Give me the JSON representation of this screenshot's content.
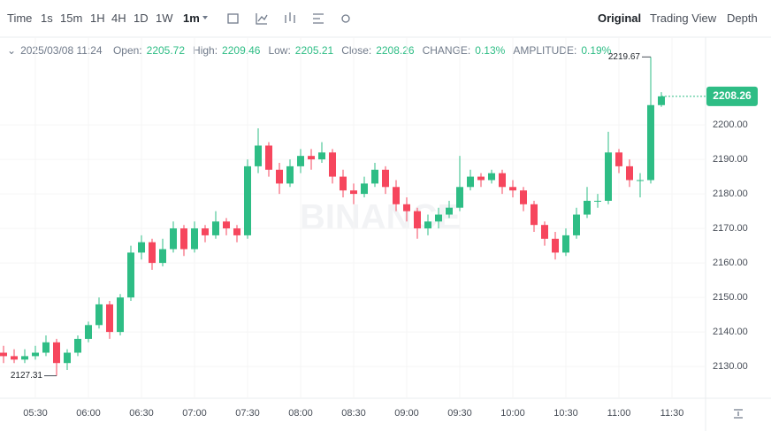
{
  "toolbar": {
    "intervals": [
      "Time",
      "1s",
      "15m",
      "1H",
      "4H",
      "1D",
      "1W",
      "1m"
    ],
    "views": [
      "Original",
      "Trading View",
      "Depth"
    ]
  },
  "legend": {
    "date": "2025/03/08 11:24",
    "items": [
      {
        "label": "Open:",
        "value": "2205.72"
      },
      {
        "label": "High:",
        "value": "2209.46"
      },
      {
        "label": "Low:",
        "value": "2205.21"
      },
      {
        "label": "Close:",
        "value": "2208.26"
      },
      {
        "label": "CHANGE:",
        "value": "0.13%"
      },
      {
        "label": "AMPLITUDE:",
        "value": "0.19%"
      }
    ]
  },
  "chart_data": {
    "type": "candlestick",
    "watermark": "BINANCE",
    "up_color": "#2ebd85",
    "down_color": "#f6465d",
    "categories": [
      "05:12",
      "05:18",
      "05:24",
      "05:30",
      "05:36",
      "05:42",
      "05:48",
      "05:54",
      "06:00",
      "06:06",
      "06:12",
      "06:18",
      "06:24",
      "06:30",
      "06:36",
      "06:42",
      "06:48",
      "06:54",
      "07:00",
      "07:06",
      "07:12",
      "07:18",
      "07:24",
      "07:30",
      "07:36",
      "07:42",
      "07:48",
      "07:54",
      "08:00",
      "08:06",
      "08:12",
      "08:18",
      "08:24",
      "08:30",
      "08:36",
      "08:42",
      "08:48",
      "08:54",
      "09:00",
      "09:06",
      "09:12",
      "09:18",
      "09:24",
      "09:30",
      "09:36",
      "09:42",
      "09:48",
      "09:54",
      "10:00",
      "10:06",
      "10:12",
      "10:18",
      "10:24",
      "10:30",
      "10:36",
      "10:42",
      "10:48",
      "10:54",
      "11:00",
      "11:06",
      "11:12",
      "11:18",
      "11:24"
    ],
    "open": [
      2134,
      2133,
      2132,
      2133,
      2134,
      2137,
      2131,
      2134,
      2138,
      2142,
      2148,
      2140,
      2150,
      2163,
      2166,
      2160,
      2164,
      2170,
      2164,
      2170,
      2168,
      2172,
      2170,
      2168,
      2188,
      2194,
      2187,
      2183,
      2188,
      2191,
      2190,
      2192,
      2185,
      2181,
      2180,
      2183,
      2187,
      2182,
      2177,
      2175,
      2170,
      2172,
      2174,
      2176,
      2182,
      2185,
      2184,
      2186,
      2182,
      2181,
      2177,
      2171,
      2167,
      2163,
      2168,
      2174,
      2178,
      2178,
      2192,
      2188,
      2184,
      2184,
      2205.72
    ],
    "high": [
      2136,
      2135,
      2135,
      2136,
      2139,
      2138,
      2135,
      2139,
      2143,
      2150,
      2149,
      2151,
      2165,
      2168,
      2167,
      2167,
      2172,
      2171,
      2172,
      2171,
      2175,
      2173,
      2171,
      2190,
      2199,
      2195,
      2189,
      2190,
      2193,
      2193,
      2195,
      2193,
      2187,
      2183,
      2185,
      2189,
      2188,
      2184,
      2179,
      2176,
      2174,
      2176,
      2178,
      2191,
      2187,
      2186,
      2187,
      2187,
      2184,
      2182,
      2178,
      2172,
      2169,
      2170,
      2176,
      2182,
      2180,
      2198,
      2193,
      2190,
      2186,
      2219.67,
      2209.46
    ],
    "low": [
      2131,
      2131,
      2131,
      2132,
      2133,
      2127.31,
      2129,
      2133,
      2137,
      2141,
      2138,
      2139,
      2149,
      2161,
      2158,
      2159,
      2163,
      2162,
      2163,
      2166,
      2167,
      2168,
      2166,
      2167,
      2186,
      2185,
      2180,
      2182,
      2186,
      2187,
      2189,
      2183,
      2179,
      2177,
      2179,
      2182,
      2180,
      2175,
      2172,
      2167,
      2168,
      2170,
      2173,
      2175,
      2181,
      2182,
      2183,
      2180,
      2179,
      2175,
      2169,
      2165,
      2161,
      2162,
      2167,
      2173,
      2176,
      2177,
      2186,
      2182,
      2179,
      2183,
      2205.21
    ],
    "close": [
      2133,
      2132,
      2133,
      2134,
      2137,
      2131,
      2134,
      2138,
      2142,
      2148,
      2140,
      2150,
      2163,
      2166,
      2160,
      2164,
      2170,
      2164,
      2170,
      2168,
      2172,
      2170,
      2168,
      2188,
      2194,
      2187,
      2183,
      2188,
      2191,
      2190,
      2192,
      2185,
      2181,
      2180,
      2183,
      2187,
      2182,
      2177,
      2175,
      2170,
      2172,
      2174,
      2176,
      2182,
      2185,
      2184,
      2186,
      2182,
      2181,
      2177,
      2171,
      2167,
      2163,
      2168,
      2174,
      2178,
      2178,
      2192,
      2188,
      2184,
      2184,
      2205.72,
      2208.26
    ],
    "max_label": "2219.67",
    "min_label": "2127.31",
    "last_price_label": "2208.26",
    "xlim": [
      "05:10",
      "11:49"
    ],
    "xticks": [
      "05:30",
      "06:00",
      "06:30",
      "07:00",
      "07:30",
      "08:00",
      "08:30",
      "09:00",
      "09:30",
      "10:00",
      "10:30",
      "11:00",
      "11:30"
    ],
    "ylim": [
      2120.8,
      2225.4
    ],
    "yticks": [
      {
        "value": 2130,
        "label": "2130.00"
      },
      {
        "value": 2140,
        "label": "2140.00"
      },
      {
        "value": 2150,
        "label": "2150.00"
      },
      {
        "value": 2160,
        "label": "2160.00"
      },
      {
        "value": 2170,
        "label": "2170.00"
      },
      {
        "value": 2180,
        "label": "2180.00"
      },
      {
        "value": 2190,
        "label": "2190.00"
      },
      {
        "value": 2200,
        "label": "2200.00"
      }
    ],
    "grid": true
  }
}
